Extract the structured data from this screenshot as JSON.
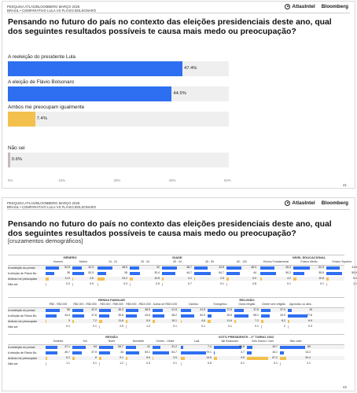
{
  "header": {
    "line1": "PESQUISA ATLAS/BLOOMBERG MARÇO 2026",
    "line2": "BRASIL • COMPARATIVO LULA VS FLÁVIO BOLSONARO",
    "brand1": "AtlasIntel",
    "brand2": "Bloomberg"
  },
  "question": "Pensando no futuro do país no contexto das eleições presidenciais deste ano, qual dos seguintes resultados possíveis te causa mais medo ou preocupação?",
  "subtitle": "[cruzamentos demográficos]",
  "page1": "41",
  "page2": "42",
  "colors": {
    "blue": "#2e6ff2",
    "yellow": "#f4c04d",
    "gray": "#c9b8b8",
    "track": "#efefef"
  },
  "chart_data": [
    {
      "type": "bar",
      "orientation": "horizontal",
      "categories": [
        "A reeleição do presidente Lula",
        "A eleição de Flávio Bolsonaro",
        "Ambos me preocupam igualmente",
        "Não sei"
      ],
      "values": [
        47.4,
        44.5,
        7.4,
        0.6
      ],
      "value_labels": [
        "47.4%",
        "44.5%",
        "7.4%",
        "0.6%"
      ],
      "bar_colors": [
        "#2e6ff2",
        "#2e6ff2",
        "#f4c04d",
        "#c9b8b8"
      ],
      "xlim": [
        0,
        60
      ],
      "xticks": [
        "0%",
        "15%",
        "30%",
        "45%",
        "60%"
      ]
    },
    {
      "type": "table",
      "row_labels": [
        "A reeleição do presid",
        "A eleição de Flávio Bo",
        "Ambos me preocupam",
        "Não sei"
      ],
      "groups": [
        {
          "title": "GÊNERO",
          "columns": [
            {
              "name": "Homem",
              "values": [
                52.8,
                35,
                11.9,
                0.3
              ]
            },
            {
              "name": "Mulher",
              "values": [
                42.3,
                53.3,
                4.5,
                0.9
              ]
            }
          ]
        },
        {
          "title": "IDADE",
          "columns": [
            {
              "name": "16 - 24",
              "values": [
                48.5,
                28,
                23.2,
                0.3
              ]
            },
            {
              "name": "25 - 34",
              "values": [
                32.0,
                33.4,
                10.8,
                0.5
              ]
            },
            {
              "name": "35 - 44",
              "values": [
                48.7,
                44.7,
                4.1,
                0.7
              ]
            },
            {
              "name": "45 - 59",
              "values": [
                42.8,
                54.7,
                2.5,
                0.1
              ]
            },
            {
              "name": "60 - 100",
              "values": [
                48.3,
                44.0,
                6.9,
                0.8
              ]
            }
          ]
        },
        {
          "title": "NÍVEL EDUCACIONAL",
          "columns": [
            {
              "name": "Ensino Fundamental",
              "values": [
                45.4,
                50.2,
                4.2,
                0.1
              ]
            },
            {
              "name": "Ensino Médio",
              "values": [
                52.9,
                35.5,
                10.6,
                0.1
              ]
            },
            {
              "name": "Ensino Superior",
              "values": [
                41.6,
                50.9,
                6.4,
                1.1
              ]
            }
          ]
        },
        {
          "title": "RENDA FAMILIAR",
          "columns": [
            {
              "name": "R$0 - R$2.000",
              "values": [
                56.0,
                44.4,
                3,
                0.1
              ]
            },
            {
              "name": "R$2.000 - R$3.000",
              "values": [
                42.9,
                47.8,
                7.2,
                0.1
              ]
            },
            {
              "name": "R$3.000 - R$5.000",
              "values": [
                46.4,
                39.6,
                11.6,
                2.5
              ]
            },
            {
              "name": "R$5.000 - R$10.000",
              "values": [
                48.5,
                43.5,
                5.9,
                1.2
              ]
            },
            {
              "name": "Acima de R$10.000",
              "values": [
                41.5,
                48.2,
                10.1,
                0.1
              ]
            }
          ]
        },
        {
          "title": "RELIGIÃO",
          "columns": [
            {
              "name": "Católico",
              "values": [
                41.5,
                52.9,
                4.6,
                0.1
              ]
            },
            {
              "name": "Evangélico",
              "values": [
                72.8,
                15.5,
                11.6,
                0.1
              ]
            },
            {
              "name": "Outra religião",
              "values": [
                37.6,
                55.2,
                7.2,
                0.1
              ]
            },
            {
              "name": "Ciente sem religião",
              "values": [
                37.9,
                33.9,
                8.2,
                2
              ]
            },
            {
              "name": "Agnóstico ou ateu",
              "values": [
                15,
                77.8,
                6.9,
                0.3
              ]
            }
          ]
        },
        {
          "title": "REGIÃO",
          "columns": [
            {
              "name": "Sudeste",
              "values": [
                47.1,
                45.7,
                6.2,
                1.1
              ]
            },
            {
              "name": "Sul",
              "values": [
                54,
                37.9,
                8,
                0.1
              ]
            },
            {
              "name": "Norte",
              "values": [
                55.7,
                44,
                9.1,
                1.2
              ]
            },
            {
              "name": "Nordeste",
              "values": [
                41,
                53.1,
                5.6,
                0.3
              ]
            },
            {
              "name": "Centro - Oeste",
              "values": [
                31.2,
                64.7,
                3.9,
                0.1
              ]
            }
          ]
        },
        {
          "title": "VOTO PRESIDENTE - 2º TURNO 2022",
          "columns": [
            {
              "name": "Lula",
              "values": [
                7.4,
                79.1,
                13.5,
                0.6
              ]
            },
            {
              "name": "Jair Bolsonaro",
              "values": [
                86.8,
                3.7,
                9.5,
                0.1
              ]
            },
            {
              "name": "Voto branco / nulo",
              "values": [
                16.7,
                16.1,
                67.2,
                0.1
              ]
            },
            {
              "name": "Não votei",
              "values": [
                80,
                13.2,
                20.4,
                2.1
              ]
            }
          ]
        }
      ]
    }
  ]
}
